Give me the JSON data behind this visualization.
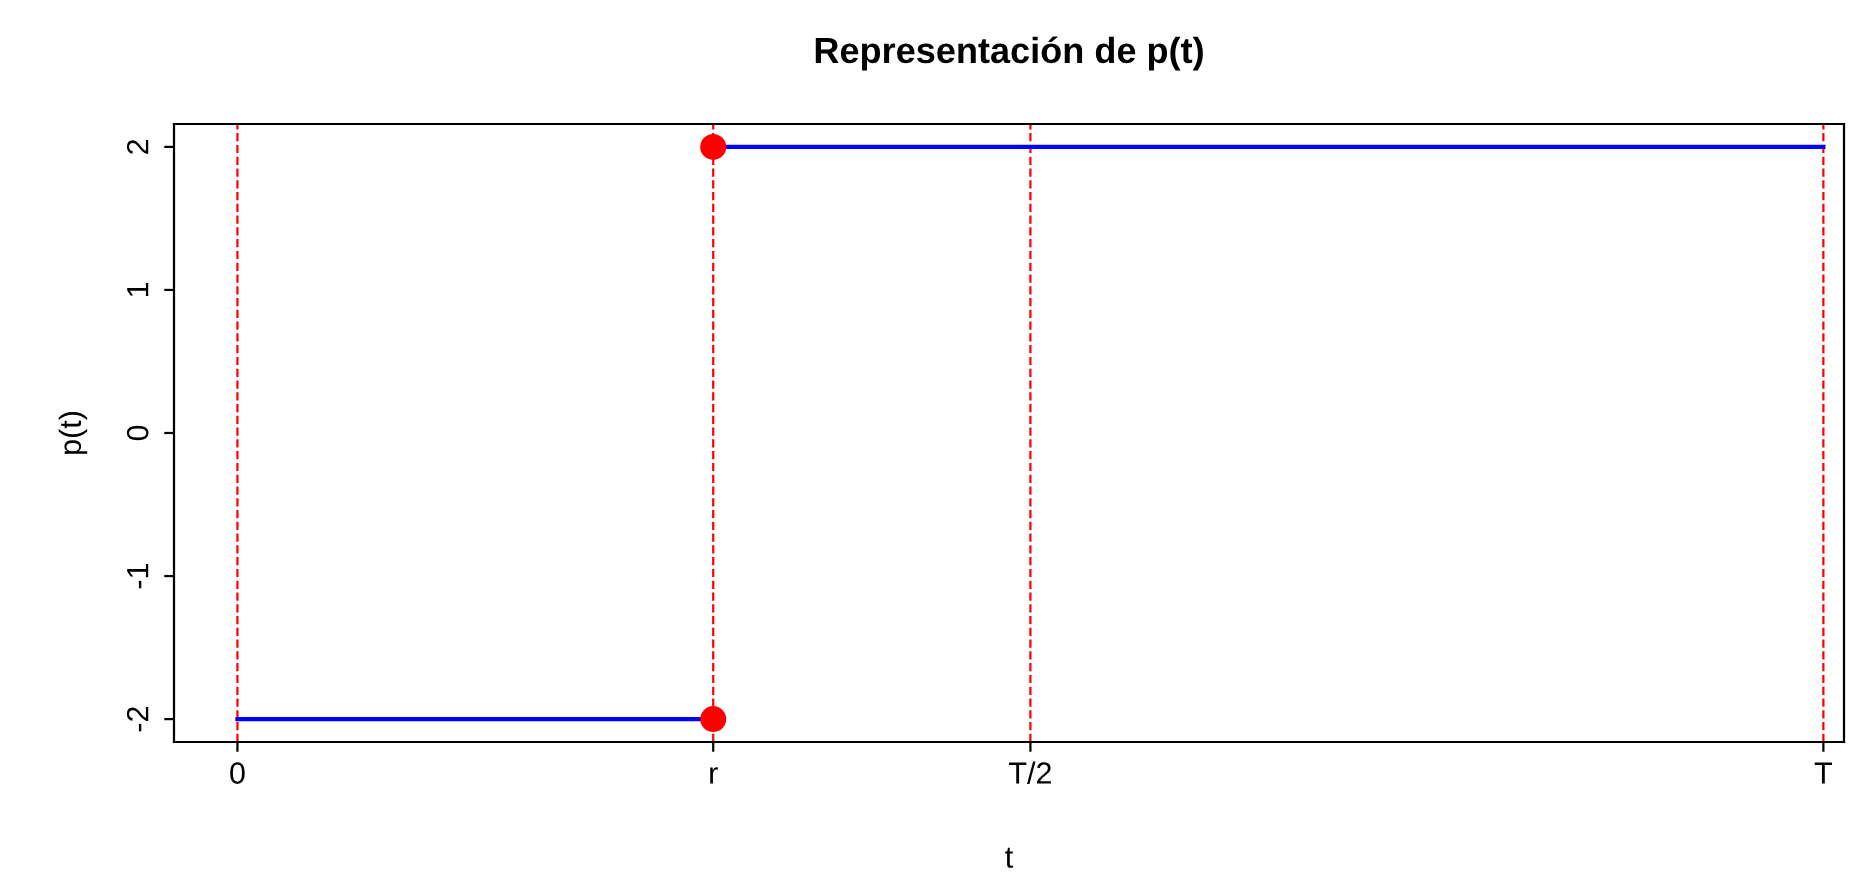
{
  "chart_data": {
    "type": "line",
    "title": "Representación de p(t)",
    "xlabel": "t",
    "ylabel": "p(t)",
    "categories": [
      "0",
      null,
      null,
      null,
      null,
      null,
      "r",
      null,
      null,
      null,
      "T/2",
      null,
      null,
      null,
      null,
      null,
      null,
      null,
      null,
      null,
      "T"
    ],
    "ylim": [
      -2.16,
      2.16
    ],
    "yticks": [
      -2,
      -1,
      0,
      1,
      2
    ],
    "grid": false,
    "legend": false,
    "series": [
      {
        "color": "#0000ff",
        "values": [
          -2,
          -2,
          -2,
          -2,
          -2,
          -2,
          -2,
          null,
          null,
          null,
          null,
          null,
          null,
          null,
          null,
          null,
          null,
          null,
          null,
          null,
          null
        ]
      },
      {
        "color": "#0000ff",
        "values": [
          null,
          null,
          null,
          null,
          null,
          null,
          2,
          2,
          2,
          2,
          2,
          2,
          2,
          2,
          2,
          2,
          2,
          2,
          2,
          2,
          2
        ]
      },
      {
        "type": "scatter",
        "color": "#ff0000",
        "marker": "circle",
        "values": [
          null,
          null,
          null,
          null,
          null,
          null,
          -2,
          null,
          null,
          null,
          null,
          null,
          null,
          null,
          null,
          null,
          null,
          null,
          null,
          null,
          null
        ]
      },
      {
        "type": "scatter",
        "color": "#ff0000",
        "marker": "circle",
        "values": [
          null,
          null,
          null,
          null,
          null,
          null,
          2,
          null,
          null,
          null,
          null,
          null,
          null,
          null,
          null,
          null,
          null,
          null,
          null,
          null,
          null
        ]
      }
    ],
    "ref_lines": [
      {
        "axis": "x",
        "value": "0",
        "color": "#ff0000",
        "line_style": "dashed"
      },
      {
        "axis": "x",
        "value": "r",
        "color": "#ff0000",
        "line_style": "dashed"
      },
      {
        "axis": "x",
        "value": "T/2",
        "color": "#ff0000",
        "line_style": "dashed"
      },
      {
        "axis": "x",
        "value": "T",
        "color": "#ff0000",
        "line_style": "dashed"
      }
    ]
  }
}
